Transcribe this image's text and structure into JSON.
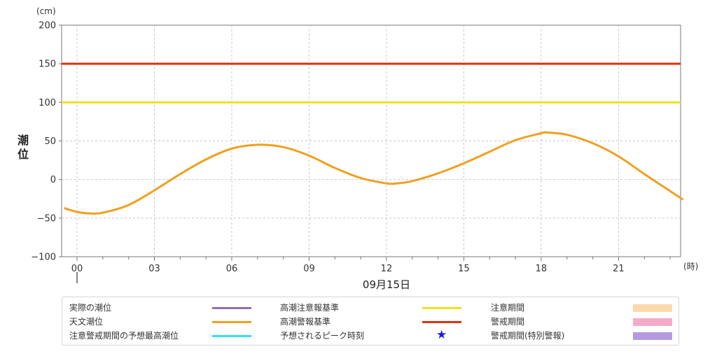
{
  "chart_data": {
    "type": "line",
    "y_unit": "(cm)",
    "x_unit": "(時)",
    "ylabel": "潮位",
    "date_label": "09月15日",
    "ylim": [
      -100,
      200
    ],
    "y_ticks": [
      "200",
      "150",
      "100",
      "50",
      "0",
      "−50",
      "−100"
    ],
    "x_ticks": [
      "00",
      "03",
      "06",
      "09",
      "12",
      "15",
      "18",
      "21"
    ],
    "grid": true,
    "series": [
      {
        "name": "天文潮位",
        "color": "#f0a020",
        "x": [
          -0.5,
          0,
          0.5,
          1,
          2,
          3,
          4,
          5,
          6,
          7,
          8,
          9,
          10,
          11,
          12,
          12.4,
          13,
          14,
          15,
          16,
          17,
          18,
          18.2,
          19,
          20,
          21,
          22,
          23,
          23.5
        ],
        "values": [
          -37,
          -42,
          -44,
          -43,
          -33,
          -14,
          7,
          26,
          40,
          45,
          42,
          31,
          15,
          2,
          -5,
          -5,
          -2,
          8,
          21,
          36,
          51,
          60,
          61,
          58,
          47,
          30,
          7,
          -15,
          -26
        ]
      }
    ],
    "reference_lines": [
      {
        "name": "高潮注意報基準",
        "value": 100,
        "color": "#f0e020"
      },
      {
        "name": "高潮警報基準",
        "value": 150,
        "color": "#dd3311"
      }
    ]
  },
  "legend": {
    "col1": [
      {
        "label": "実際の潮位",
        "color": "#9070b8",
        "kind": "line"
      },
      {
        "label": "天文潮位",
        "color": "#f0a020",
        "kind": "line"
      },
      {
        "label": "注意警戒期間の予想最高潮位",
        "color": "#33e0e8",
        "kind": "line"
      }
    ],
    "col2": [
      {
        "label": "高潮注意報基準",
        "color": "#f0e020",
        "kind": "line"
      },
      {
        "label": "高潮警報基準",
        "color": "#dd3311",
        "kind": "line"
      },
      {
        "label": "予想されるピーク時刻",
        "color": "#1a1adc",
        "kind": "star",
        "symbol": "★"
      }
    ],
    "col3": [
      {
        "label": "注意期間",
        "color": "#fbd9ad",
        "kind": "box"
      },
      {
        "label": "警戒期間",
        "color": "#f6aac8",
        "kind": "box"
      },
      {
        "label": "警戒期間(特別警報)",
        "color": "#b49ae0",
        "kind": "box"
      }
    ]
  }
}
